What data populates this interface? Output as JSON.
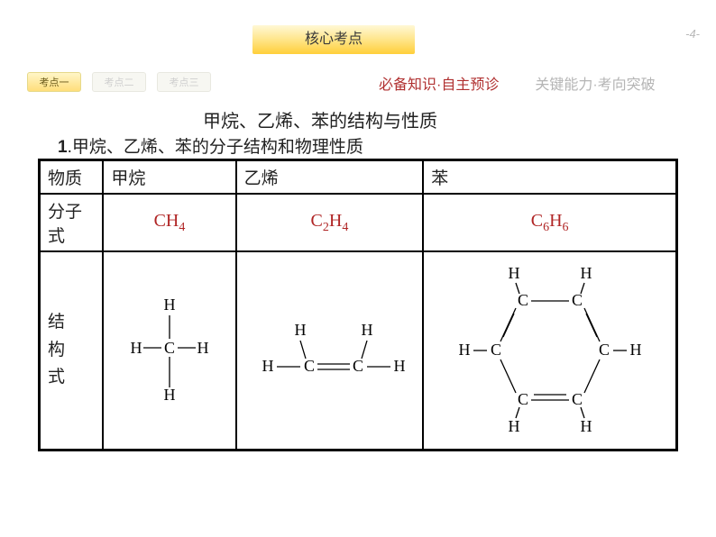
{
  "page_number": "-4-",
  "top_button": "核心考点",
  "tabs": [
    {
      "label": "考点一",
      "active": true
    },
    {
      "label": "考点二",
      "active": false
    },
    {
      "label": "考点三",
      "active": false
    }
  ],
  "subnav": {
    "active": "必备知识·自主预诊",
    "inactive": "关键能力·考向突破"
  },
  "main_title": "甲烷、乙烯、苯的结构与性质",
  "sub_title_num": "1",
  "sub_title_text": ".甲烷、乙烯、苯的分子结构和物理性质",
  "table": {
    "row_labels": {
      "substance": "物质",
      "formula": "分子式",
      "structure_l1": "结",
      "structure_l2": "构",
      "structure_l3": "式"
    },
    "cols": [
      {
        "name": "甲烷",
        "formula_html": "CH<sub>4</sub>"
      },
      {
        "name": "乙烯",
        "formula_html": "C<sub>2</sub>H<sub>4</sub>"
      },
      {
        "name": "苯",
        "formula_html": "C<sub>6</sub>H<sub>6</sub>"
      }
    ]
  },
  "colors": {
    "accent_red": "#b02525",
    "gold_grad_top": "#fff8d6",
    "gold_grad_bottom": "#ffcf3a",
    "inactive_gray": "#b5b5b5"
  }
}
